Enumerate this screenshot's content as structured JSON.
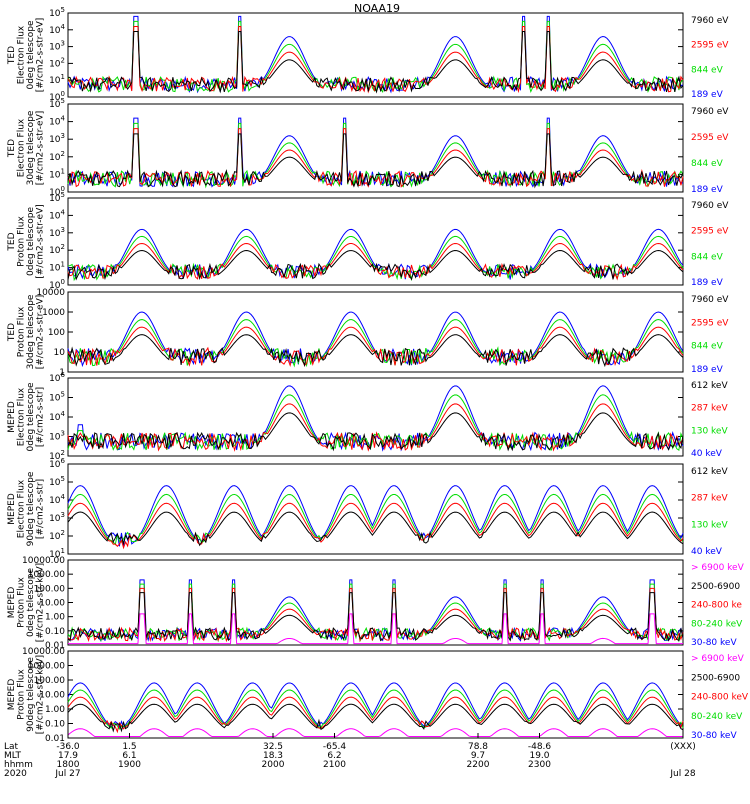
{
  "title": "NOAA19",
  "colors": {
    "black": "#000000",
    "red": "#ff0000",
    "green": "#00dd00",
    "blue": "#0000ff",
    "magenta": "#ff00ff"
  },
  "footer": {
    "row_labels": [
      "Lat",
      "MLT",
      "hhmm",
      "2020"
    ],
    "columns": [
      {
        "t": 1800,
        "lines": [
          "-36.0",
          "17.9",
          "1800",
          "Jul 27"
        ]
      },
      {
        "t": 1830,
        "lines": [
          "1.5",
          "6.1",
          "1900",
          ""
        ]
      },
      {
        "t": 1900,
        "lines": [
          "32.5",
          "18.3",
          "2000",
          ""
        ]
      },
      {
        "t": 1930,
        "lines": [
          "-65.4",
          "6.2",
          "2100",
          ""
        ]
      },
      {
        "t": 2000,
        "lines": [
          "78.8",
          "9.7",
          "2200",
          ""
        ]
      },
      {
        "t": 2030,
        "lines": [
          "-48.6",
          "19.0",
          "2300",
          ""
        ]
      },
      {
        "t": 2100,
        "lines": [
          "(XXX)",
          "",
          "",
          "Jul 28"
        ]
      }
    ]
  },
  "chart_data": [
    {
      "type": "line",
      "panel": 1,
      "ylabel": [
        "TED",
        "Electron Flux",
        "0deg telescope",
        "[#/cm2-s-str-eV]"
      ],
      "yscale": "log",
      "ylim": [
        1,
        100000
      ],
      "yticks": [
        "10^0",
        "10^1",
        "10^2",
        "10^3",
        "10^4",
        "10^5"
      ],
      "series": [
        {
          "name": "7960 eV",
          "color": "black"
        },
        {
          "name": "2595 eV",
          "color": "red"
        },
        {
          "name": "844 eV",
          "color": "green"
        },
        {
          "name": "189 eV",
          "color": "blue"
        }
      ],
      "peaks_x": [
        0.36,
        0.63,
        0.87
      ],
      "peak_log": 3.6,
      "spikes_x": [
        0.11,
        0.28,
        0.74,
        0.78
      ],
      "spike_log": 4.8
    },
    {
      "type": "line",
      "panel": 2,
      "ylabel": [
        "TED",
        "Electron Flux",
        "30deg telescope",
        "[#/cm2-s-str-eV]"
      ],
      "yscale": "log",
      "ylim": [
        1,
        100000
      ],
      "yticks": [
        "10^0",
        "10^1",
        "10^2",
        "10^3",
        "10^4",
        "10^5"
      ],
      "series": [
        {
          "name": "7960 eV",
          "color": "black"
        },
        {
          "name": "2595 eV",
          "color": "red"
        },
        {
          "name": "844 eV",
          "color": "green"
        },
        {
          "name": "189 eV",
          "color": "blue"
        }
      ],
      "peaks_x": [
        0.36,
        0.63,
        0.87
      ],
      "peak_log": 3.2,
      "spikes_x": [
        0.11,
        0.28,
        0.45,
        0.78
      ],
      "spike_log": 4.2
    },
    {
      "type": "line",
      "panel": 3,
      "ylabel": [
        "TED",
        "Proton Flux",
        "0deg telescope",
        "[#/cm2-s-str-eV]"
      ],
      "yscale": "log",
      "ylim": [
        1,
        100000
      ],
      "yticks": [
        "10^0",
        "10^1",
        "10^2",
        "10^3",
        "10^4",
        "10^5"
      ],
      "series": [
        {
          "name": "7960 eV",
          "color": "black"
        },
        {
          "name": "2595 eV",
          "color": "red"
        },
        {
          "name": "844 eV",
          "color": "green"
        },
        {
          "name": "189 eV",
          "color": "blue"
        }
      ],
      "peaks_x": [
        0.12,
        0.29,
        0.46,
        0.63,
        0.8,
        0.96
      ],
      "peak_log": 3.2,
      "spikes_x": [],
      "spike_log": 3.5
    },
    {
      "type": "line",
      "panel": 4,
      "ylabel": [
        "TED",
        "Proton Flux",
        "30deg telescope",
        "[#/cm2-s-str-eV]"
      ],
      "yscale": "log",
      "ylim": [
        1,
        10000
      ],
      "yticks": [
        "1",
        "10",
        "100",
        "1000",
        "10000"
      ],
      "series": [
        {
          "name": "7960 eV",
          "color": "black"
        },
        {
          "name": "2595 eV",
          "color": "red"
        },
        {
          "name": "844 eV",
          "color": "green"
        },
        {
          "name": "189 eV",
          "color": "blue"
        }
      ],
      "peaks_x": [
        0.12,
        0.29,
        0.46,
        0.63,
        0.8,
        0.96
      ],
      "peak_log": 3.0,
      "spikes_x": [],
      "spike_log": 3.2
    },
    {
      "type": "line",
      "panel": 5,
      "ylabel": [
        "MEPED",
        "Electron Flux",
        "0deg telescope",
        "[#/cm2-s-str]"
      ],
      "yscale": "log",
      "ylim": [
        100,
        1000000
      ],
      "yticks": [
        "10^2",
        "10^3",
        "10^4",
        "10^5",
        "10^6"
      ],
      "series": [
        {
          "name": "612 keV",
          "color": "black"
        },
        {
          "name": "287 keV",
          "color": "red"
        },
        {
          "name": "130 keV",
          "color": "green"
        },
        {
          "name": "40 keV",
          "color": "blue"
        }
      ],
      "peaks_x": [
        0.36,
        0.63,
        0.87
      ],
      "peak_log": 5.6,
      "spikes_x": [
        0.02
      ],
      "spike_log": 3.6
    },
    {
      "type": "line",
      "panel": 6,
      "ylabel": [
        "MEPED",
        "Electron Flux",
        "90deg telescope",
        "[#/cm2-s-str]"
      ],
      "yscale": "log",
      "ylim": [
        10,
        1000000
      ],
      "yticks": [
        "10^1",
        "10^2",
        "10^3",
        "10^4",
        "10^5",
        "10^6"
      ],
      "series": [
        {
          "name": "612 keV",
          "color": "black"
        },
        {
          "name": "287 keV",
          "color": "red"
        },
        {
          "name": "130 keV",
          "color": "green"
        },
        {
          "name": "40 keV",
          "color": "blue"
        }
      ],
      "peaks_x": [
        0.02,
        0.16,
        0.27,
        0.36,
        0.46,
        0.53,
        0.63,
        0.71,
        0.79,
        0.87,
        0.95
      ],
      "peak_log": 4.8,
      "spikes_x": [],
      "spike_log": 4.0
    },
    {
      "type": "line",
      "panel": 7,
      "ylabel": [
        "MEPED",
        "Proton Flux",
        "0deg telescope",
        "[#/cm2-s-str-keV]"
      ],
      "yscale": "log",
      "ylim": [
        0.01,
        10000
      ],
      "yticks": [
        "0.01",
        "0.10",
        "1.00",
        "10.00",
        "100.00",
        "1000.00",
        "10000.00"
      ],
      "series": [
        {
          "name": "> 6900 keV",
          "color": "magenta"
        },
        {
          "name": "2500-6900",
          "color": "black"
        },
        {
          "name": "240-800 ke",
          "color": "red"
        },
        {
          "name": "80-240 keV",
          "color": "green"
        },
        {
          "name": "30-80 keV",
          "color": "blue"
        }
      ],
      "peaks_x": [
        0.36,
        0.63,
        0.87
      ],
      "peak_log": 1.4,
      "spikes_x": [
        0.12,
        0.2,
        0.27,
        0.46,
        0.53,
        0.71,
        0.77,
        0.95
      ],
      "spike_log": 2.6
    },
    {
      "type": "line",
      "panel": 8,
      "ylabel": [
        "MEPED",
        "Proton Flux",
        "90deg telescope",
        "[#/cm2-s-str-keV]"
      ],
      "yscale": "log",
      "ylim": [
        0.01,
        10000
      ],
      "yticks": [
        "0.01",
        "0.10",
        "1.00",
        "10.00",
        "100.00",
        "1000.00",
        "10000.00"
      ],
      "series": [
        {
          "name": "> 6900 keV",
          "color": "magenta"
        },
        {
          "name": "2500-6900",
          "color": "black"
        },
        {
          "name": "240-800 keV",
          "color": "red"
        },
        {
          "name": "80-240 keV",
          "color": "green"
        },
        {
          "name": "30-80 keV",
          "color": "blue"
        }
      ],
      "peaks_x": [
        0.02,
        0.14,
        0.21,
        0.3,
        0.36,
        0.46,
        0.53,
        0.63,
        0.71,
        0.79,
        0.87,
        0.95
      ],
      "peak_log": 1.8,
      "spikes_x": [],
      "spike_log": 2.4
    }
  ]
}
